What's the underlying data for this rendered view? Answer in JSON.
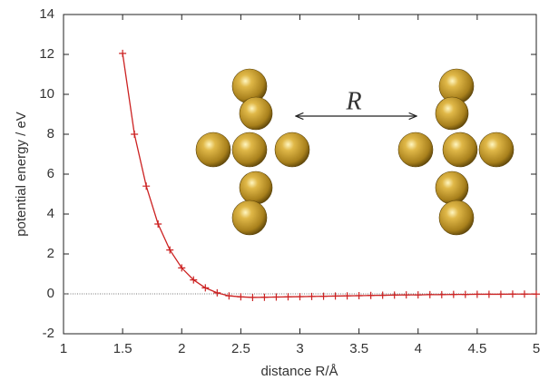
{
  "chart_data": {
    "type": "line",
    "x_label": "distance R/Å",
    "y_label": "potential energy / eV",
    "annotation": "R",
    "x": [
      1.5,
      1.6,
      1.7,
      1.8,
      1.9,
      2.0,
      2.1,
      2.2,
      2.3,
      2.4,
      2.5,
      2.6,
      2.7,
      2.8,
      2.9,
      3.0,
      3.1,
      3.2,
      3.3,
      3.4,
      3.5,
      3.6,
      3.7,
      3.8,
      3.9,
      4.0,
      4.1,
      4.2,
      4.3,
      4.4,
      4.5,
      4.6,
      4.7,
      4.8,
      4.9,
      5.0
    ],
    "series": [
      {
        "color": "#cc2222",
        "marker": "+",
        "values": [
          12.05,
          8.0,
          5.4,
          3.5,
          2.2,
          1.3,
          0.7,
          0.3,
          0.05,
          -0.1,
          -0.15,
          -0.18,
          -0.17,
          -0.16,
          -0.15,
          -0.14,
          -0.13,
          -0.12,
          -0.11,
          -0.1,
          -0.09,
          -0.08,
          -0.07,
          -0.06,
          -0.05,
          -0.05,
          -0.04,
          -0.04,
          -0.03,
          -0.03,
          -0.02,
          -0.02,
          -0.02,
          -0.01,
          -0.01,
          -0.01
        ]
      }
    ],
    "xlim": [
      1,
      5
    ],
    "xticks": [
      1,
      1.5,
      2,
      2.5,
      3,
      3.5,
      4,
      4.5,
      5
    ],
    "ylim": [
      -2,
      14
    ],
    "yticks": [
      -2,
      0,
      2,
      4,
      6,
      8,
      10,
      12,
      14
    ],
    "hlines": [
      0
    ]
  }
}
